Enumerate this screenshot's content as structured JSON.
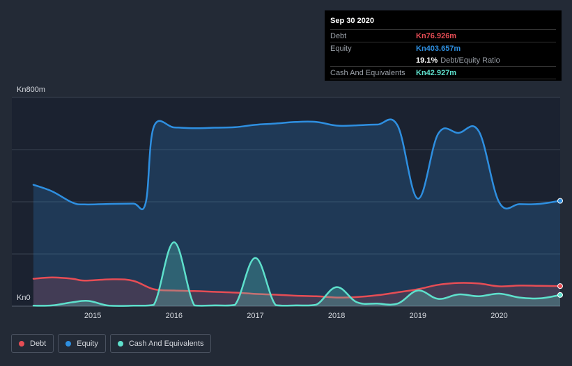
{
  "tooltip": {
    "date": "Sep 30 2020",
    "debt_label": "Debt",
    "debt_value": "Kn76.926m",
    "equity_label": "Equity",
    "equity_value": "Kn403.657m",
    "ratio_pct": "19.1%",
    "ratio_label": "Debt/Equity Ratio",
    "cash_label": "Cash And Equivalents",
    "cash_value": "Kn42.927m"
  },
  "legend": {
    "debt": "Debt",
    "equity": "Equity",
    "cash": "Cash And Equivalents"
  },
  "colors": {
    "debt": "#e64d55",
    "equity": "#2e8fe0",
    "cash": "#5ee0cc",
    "background": "#232a36",
    "plot_bg": "#1b2230"
  },
  "chart_data": {
    "type": "area",
    "y_unit_prefix": "Kn",
    "ylim": [
      0,
      800
    ],
    "y_tick_labels": [
      "Kn0",
      "Kn800m"
    ],
    "x_tick_labels": [
      "2015",
      "2016",
      "2017",
      "2018",
      "2019",
      "2020"
    ],
    "x_ticks": [
      2015,
      2016,
      2017,
      2018,
      2019,
      2020
    ],
    "xlim": [
      2014.27,
      2020.75
    ],
    "grid": true,
    "legend_position": "bottom-left",
    "series": [
      {
        "key": "equity",
        "name": "Equity",
        "points": [
          [
            2014.27,
            465
          ],
          [
            2014.5,
            440
          ],
          [
            2014.75,
            397
          ],
          [
            2014.9,
            390
          ],
          [
            2015.25,
            392
          ],
          [
            2015.5,
            393
          ],
          [
            2015.65,
            395
          ],
          [
            2015.75,
            687
          ],
          [
            2016.0,
            685
          ],
          [
            2016.25,
            682
          ],
          [
            2016.5,
            684
          ],
          [
            2016.75,
            686
          ],
          [
            2017.0,
            695
          ],
          [
            2017.25,
            700
          ],
          [
            2017.5,
            706
          ],
          [
            2017.75,
            706
          ],
          [
            2018.0,
            692
          ],
          [
            2018.25,
            693
          ],
          [
            2018.5,
            696
          ],
          [
            2018.75,
            692
          ],
          [
            2019.0,
            412
          ],
          [
            2019.25,
            661
          ],
          [
            2019.5,
            664
          ],
          [
            2019.75,
            670
          ],
          [
            2020.0,
            398
          ],
          [
            2020.25,
            391
          ],
          [
            2020.5,
            392
          ],
          [
            2020.75,
            403.657
          ]
        ]
      },
      {
        "key": "debt",
        "name": "Debt",
        "points": [
          [
            2014.27,
            105
          ],
          [
            2014.5,
            110
          ],
          [
            2014.75,
            105
          ],
          [
            2014.9,
            98
          ],
          [
            2015.25,
            103
          ],
          [
            2015.5,
            97
          ],
          [
            2015.75,
            65
          ],
          [
            2016.0,
            60
          ],
          [
            2016.25,
            58
          ],
          [
            2016.5,
            55
          ],
          [
            2016.75,
            52
          ],
          [
            2017.0,
            47
          ],
          [
            2017.25,
            44
          ],
          [
            2017.5,
            40
          ],
          [
            2017.75,
            38
          ],
          [
            2018.0,
            33
          ],
          [
            2018.25,
            35
          ],
          [
            2018.5,
            42
          ],
          [
            2018.75,
            53
          ],
          [
            2019.0,
            65
          ],
          [
            2019.25,
            82
          ],
          [
            2019.5,
            89
          ],
          [
            2019.75,
            87
          ],
          [
            2020.0,
            76
          ],
          [
            2020.25,
            79
          ],
          [
            2020.5,
            78
          ],
          [
            2020.75,
            76.926
          ]
        ]
      },
      {
        "key": "cash",
        "name": "Cash And Equivalents",
        "points": [
          [
            2014.27,
            2
          ],
          [
            2014.5,
            3
          ],
          [
            2014.75,
            15
          ],
          [
            2014.95,
            20
          ],
          [
            2015.2,
            2
          ],
          [
            2015.5,
            2
          ],
          [
            2015.75,
            5
          ],
          [
            2016.0,
            245
          ],
          [
            2016.25,
            3
          ],
          [
            2016.5,
            3
          ],
          [
            2016.75,
            5
          ],
          [
            2017.0,
            185
          ],
          [
            2017.25,
            4
          ],
          [
            2017.5,
            3
          ],
          [
            2017.75,
            6
          ],
          [
            2018.0,
            73
          ],
          [
            2018.25,
            15
          ],
          [
            2018.5,
            10
          ],
          [
            2018.75,
            10
          ],
          [
            2019.0,
            60
          ],
          [
            2019.25,
            28
          ],
          [
            2019.5,
            45
          ],
          [
            2019.75,
            38
          ],
          [
            2020.0,
            48
          ],
          [
            2020.25,
            33
          ],
          [
            2020.5,
            30
          ],
          [
            2020.75,
            42.927
          ]
        ]
      }
    ]
  }
}
